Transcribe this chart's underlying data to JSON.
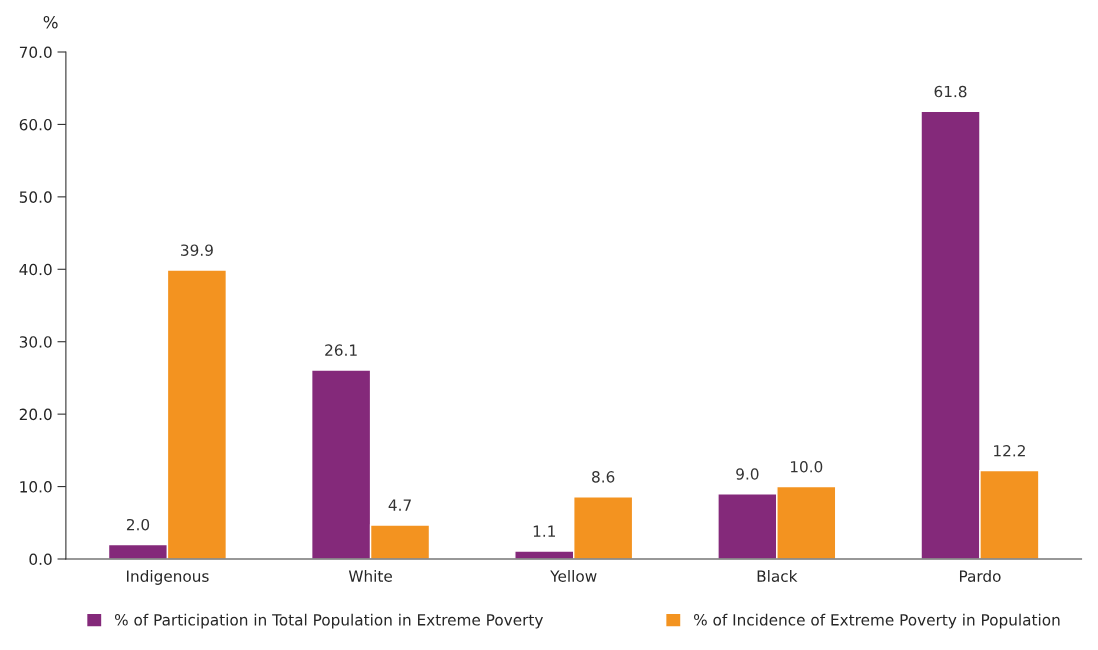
{
  "chart_data": {
    "type": "bar",
    "ylabel": "%",
    "categories": [
      "Indigenous",
      "White",
      "Yellow",
      "Black",
      "Pardo"
    ],
    "series": [
      {
        "name": "% of Participation in Total Population in Extreme Poverty",
        "color": "#84297a",
        "values": [
          2.0,
          26.1,
          1.1,
          9.0,
          61.8
        ],
        "value_labels": [
          "2.0",
          "26.1",
          "1.1",
          "9.0",
          "61.8"
        ]
      },
      {
        "name": "% of Incidence of Extreme Poverty in Population",
        "color": "#f39320",
        "values": [
          39.9,
          4.7,
          8.6,
          10.0,
          12.2
        ],
        "value_labels": [
          "39.9",
          "4.7",
          "8.6",
          "10.0",
          "12.2"
        ]
      }
    ],
    "ylim": [
      0,
      70
    ],
    "yticks": [
      {
        "value": 0,
        "label": "0.0"
      },
      {
        "value": 10,
        "label": "10.0"
      },
      {
        "value": 20,
        "label": "20.0"
      },
      {
        "value": 30,
        "label": "30.0"
      },
      {
        "value": 40,
        "label": "40.0"
      },
      {
        "value": 50,
        "label": "50.0"
      },
      {
        "value": 60,
        "label": "60.0"
      },
      {
        "value": 70,
        "label": "70.0"
      }
    ],
    "grid": false,
    "legend": "bottom"
  }
}
